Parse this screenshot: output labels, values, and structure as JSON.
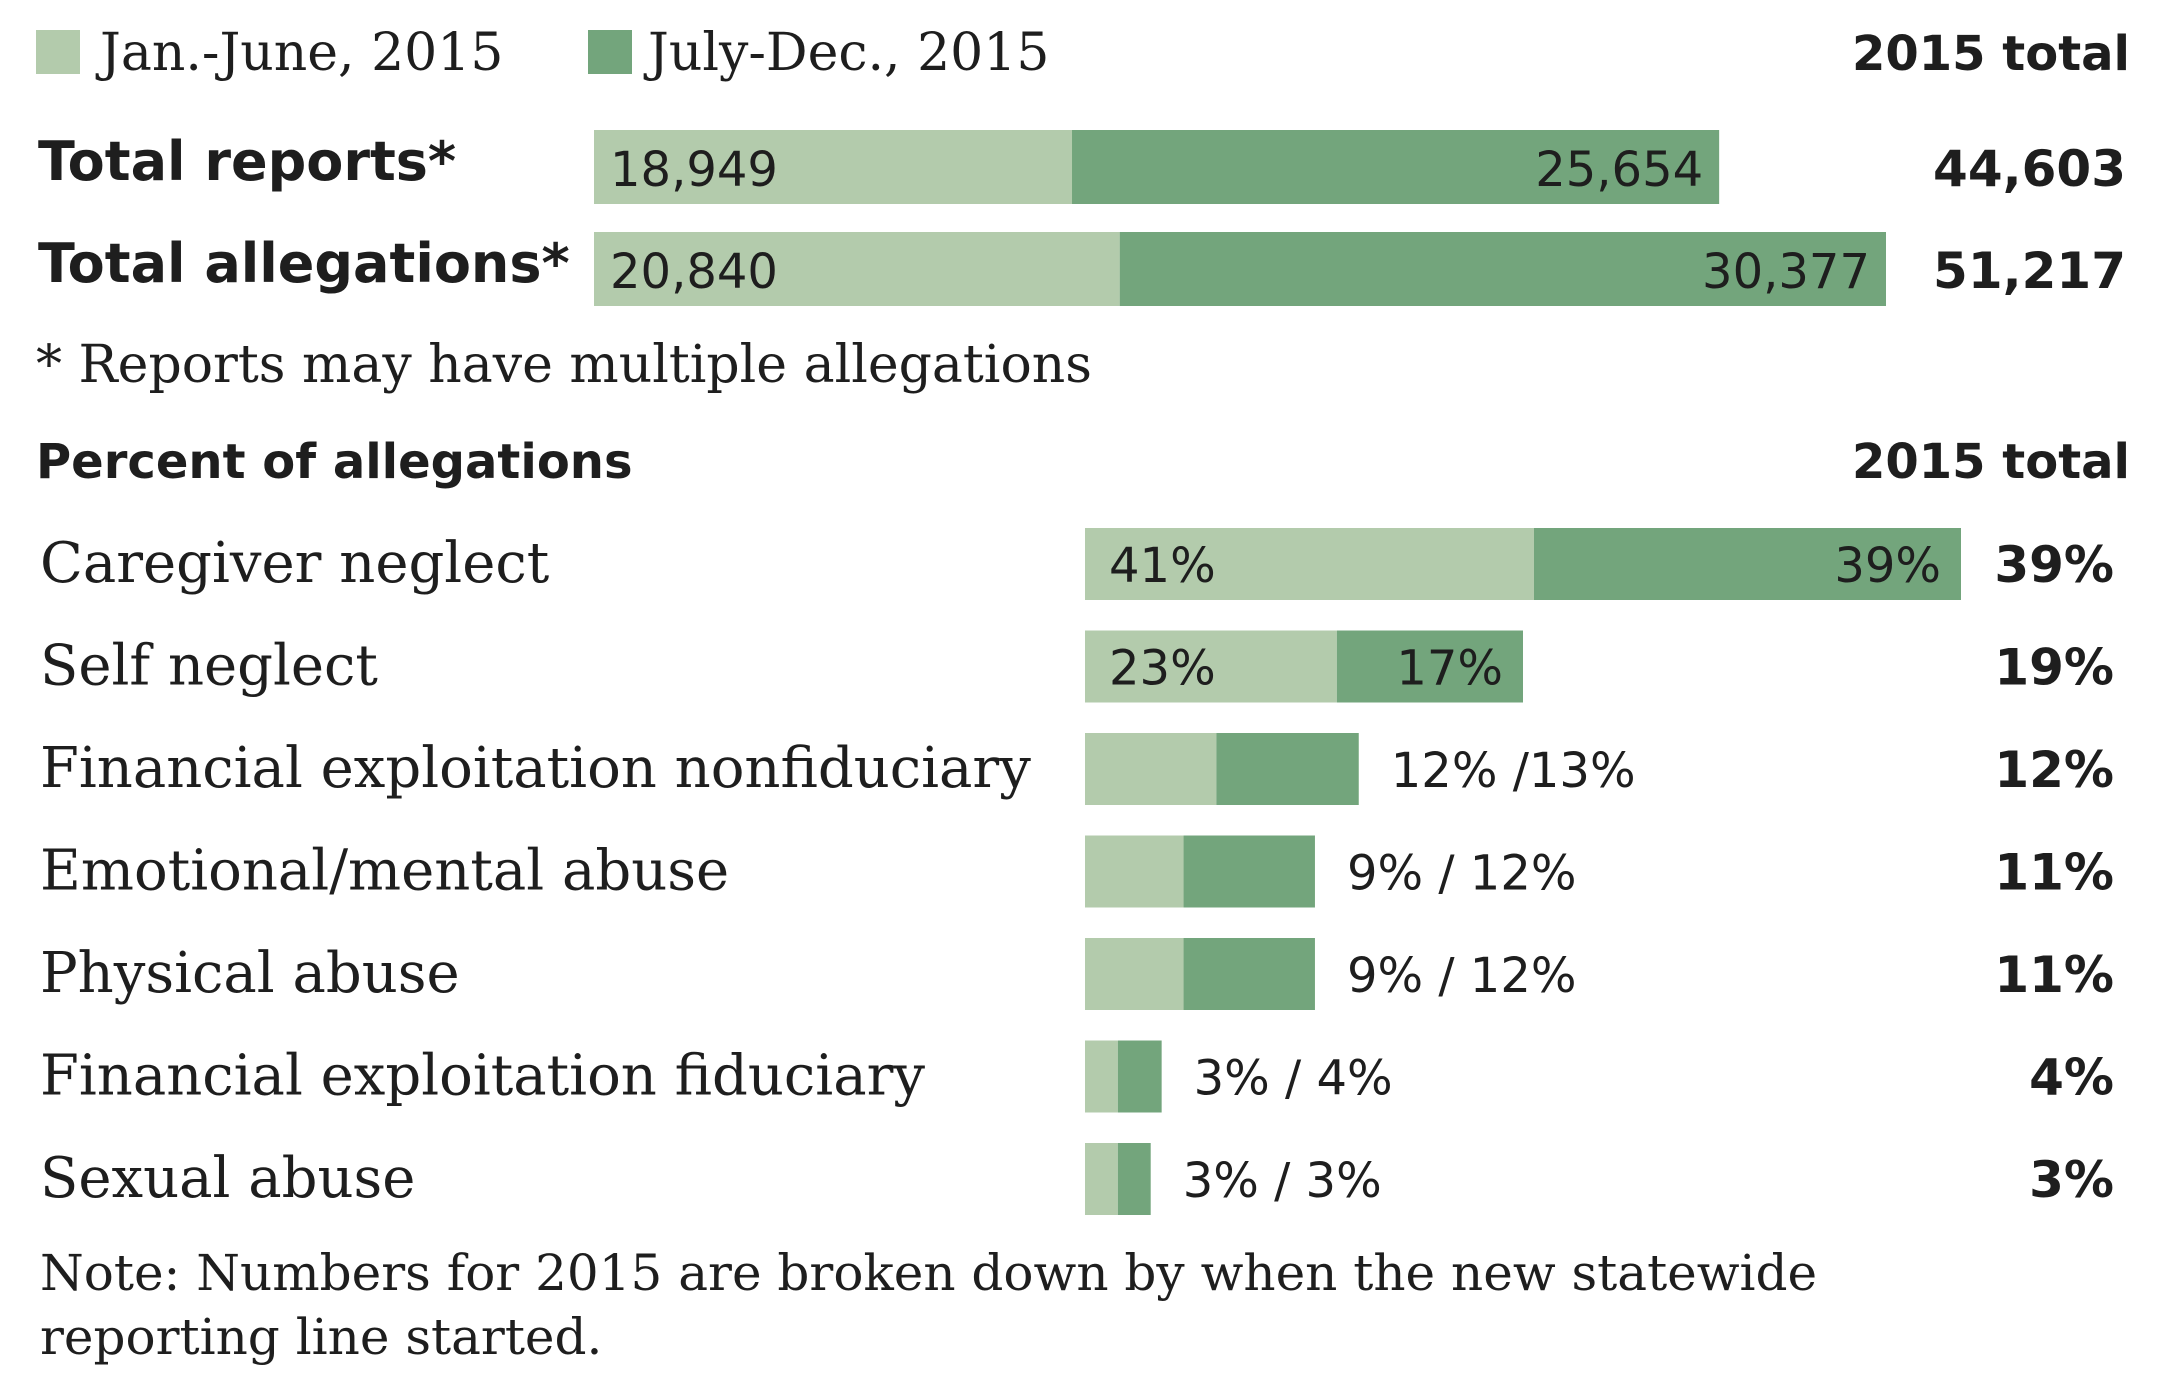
{
  "colors": {
    "first_half": "#b3cbac",
    "second_half": "#73a57c",
    "text": "#1e1e1e"
  },
  "legend": [
    {
      "label": "Jan.-June, 2015",
      "color": "#b3cbac"
    },
    {
      "label": "July-Dec., 2015",
      "color": "#73a57c"
    }
  ],
  "chart_data": [
    {
      "type": "bar",
      "stacked": true,
      "orientation": "horizontal",
      "total_header": "2015 total",
      "categories": [
        "Total reports*",
        "Total allegations*"
      ],
      "series": [
        {
          "name": "Jan.-June, 2015",
          "values": [
            18949,
            20840
          ],
          "labels": [
            "18,949",
            "20,840"
          ]
        },
        {
          "name": "July-Dec., 2015",
          "values": [
            25654,
            30377
          ],
          "labels": [
            "25,654",
            "30,377"
          ]
        }
      ],
      "totals": [
        "44,603",
        "51,217"
      ],
      "xlim": [
        0,
        51217
      ],
      "footnote": "* Reports may have multiple allegations",
      "grid": false
    },
    {
      "type": "bar",
      "stacked": false,
      "orientation": "horizontal",
      "title": "Percent of allegations",
      "total_header": "2015 total",
      "categories": [
        "Caregiver neglect",
        "Self neglect",
        "Financial exploitation nonfiduciary",
        "Emotional/mental abuse",
        "Physical abuse",
        "Financial exploitation fiduciary",
        "Sexual abuse"
      ],
      "series": [
        {
          "name": "Jan.-June, 2015",
          "values": [
            41,
            23,
            12,
            9,
            9,
            3,
            3
          ]
        },
        {
          "name": "July-Dec., 2015",
          "values": [
            39,
            17,
            13,
            12,
            12,
            4,
            3
          ]
        }
      ],
      "inside_labels": [
        [
          "41%",
          "39%"
        ],
        [
          "23%",
          "17%"
        ],
        null,
        null,
        null,
        null,
        null
      ],
      "outside_labels": [
        null,
        null,
        "12% /13%",
        "9% / 12%",
        "9% / 12%",
        "3% / 4%",
        "3% / 3%"
      ],
      "totals": [
        "39%",
        "19%",
        "12%",
        "11%",
        "11%",
        "4%",
        "3%"
      ],
      "xlim": [
        0,
        80
      ],
      "grid": false
    }
  ],
  "note": {
    "line1": "Note: Numbers for 2015 are broken down by when the new statewide",
    "line2": "reporting line started."
  }
}
